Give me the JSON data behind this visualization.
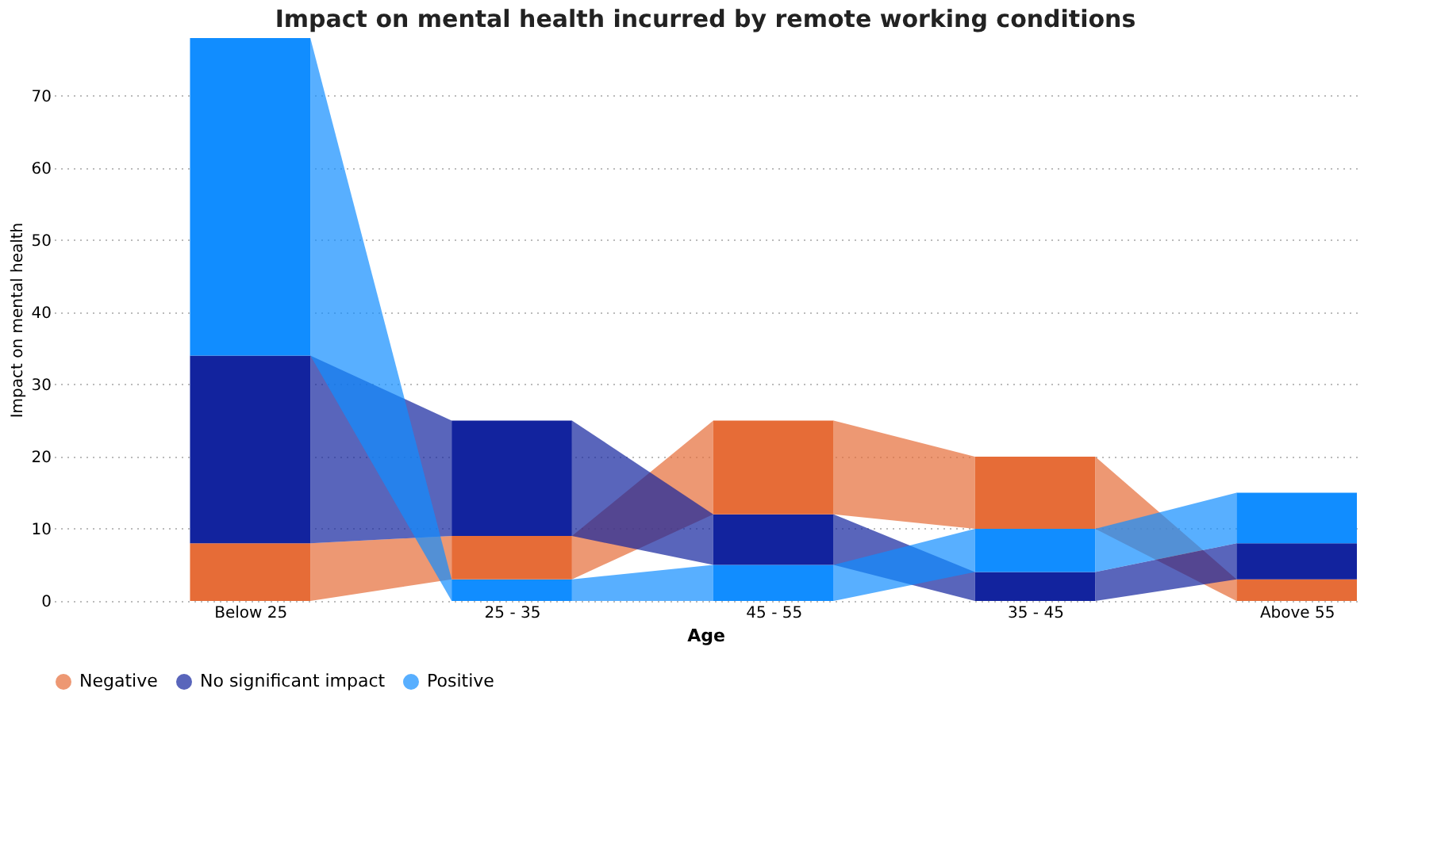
{
  "chart_data": {
    "type": "bar",
    "stacked": true,
    "title": "Impact on mental health incurred by remote working conditions",
    "xlabel": "Age",
    "ylabel": "Impact on mental health",
    "categories": [
      "Below 25",
      "25 - 35",
      "45 - 55",
      "35 - 45",
      "Above 55"
    ],
    "series": [
      {
        "name": "Negative",
        "color": "#e66c37",
        "values": [
          8,
          6,
          13,
          10,
          3
        ]
      },
      {
        "name": "No significant impact",
        "color": "#12239e",
        "values": [
          26,
          16,
          7,
          4,
          5
        ]
      },
      {
        "name": "Positive",
        "color": "#118dff",
        "values": [
          44,
          3,
          5,
          6,
          7
        ]
      }
    ],
    "ylim": [
      0,
      78
    ],
    "yticks": [
      0,
      10,
      20,
      30,
      40,
      50,
      60,
      70
    ],
    "grid": "y",
    "legend": "bottom"
  }
}
